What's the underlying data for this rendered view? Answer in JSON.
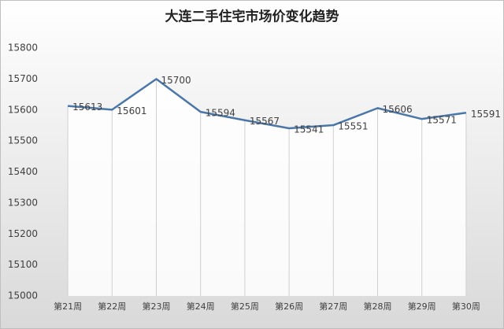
{
  "chart_data": {
    "type": "line",
    "title": "大连二手住宅市场价变化趋势",
    "categories": [
      "第21周",
      "第22周",
      "第23周",
      "第24周",
      "第25周",
      "第26周",
      "第27周",
      "第28周",
      "第29周",
      "第30周"
    ],
    "values": [
      15613,
      15601,
      15700,
      15594,
      15567,
      15541,
      15551,
      15606,
      15571,
      15591
    ],
    "color": "#4a76a8",
    "ylim": [
      15000,
      15800
    ],
    "yticks": [
      15000,
      15100,
      15200,
      15300,
      15400,
      15500,
      15600,
      15700,
      15800
    ],
    "drop_lines": true
  }
}
